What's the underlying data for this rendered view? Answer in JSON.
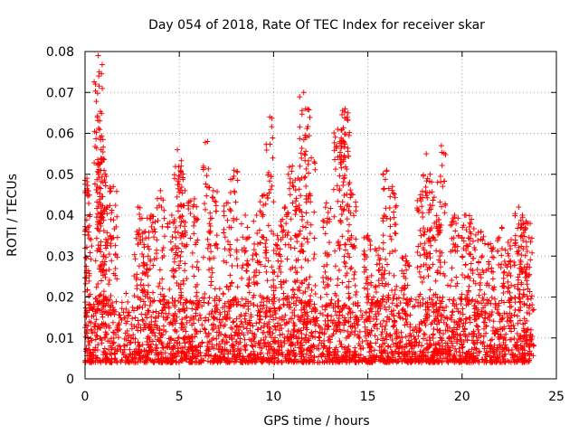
{
  "chart_data": {
    "type": "scatter",
    "title": "Day 054 of 2018, Rate Of TEC Index for receiver skar",
    "xlabel": "GPS time / hours",
    "ylabel": "ROTI / TECUs",
    "xlim": [
      0,
      25
    ],
    "ylim": [
      0,
      0.08
    ],
    "x_ticks": [
      0,
      5,
      10,
      15,
      20,
      25
    ],
    "x_tick_labels": [
      "0",
      "5",
      "10",
      "15",
      "20",
      "25"
    ],
    "y_ticks": [
      0,
      0.01,
      0.02,
      0.03,
      0.04,
      0.05,
      0.06,
      0.07,
      0.08
    ],
    "y_tick_labels": [
      "0",
      "0.01",
      "0.02",
      "0.03",
      "0.04",
      "0.05",
      "0.06",
      "0.07",
      "0.08"
    ],
    "grid": true,
    "marker": "+",
    "color": "#ff0000",
    "data_time_range": [
      0,
      23.8
    ],
    "baseline_band": [
      0.004,
      0.02
    ],
    "series": [
      {
        "name": "ROTI",
        "x": [
          0.1,
          0.15,
          0.7,
          0.75,
          0.8,
          0.85,
          0.9,
          1.2,
          1.5,
          2.8,
          3.2,
          3.5,
          4.0,
          4.6,
          4.9,
          5.1,
          5.3,
          5.8,
          6.5,
          6.8,
          7.5,
          7.9,
          8.5,
          9.1,
          9.5,
          9.8,
          10.2,
          10.6,
          11.0,
          11.3,
          11.6,
          11.7,
          12.0,
          12.8,
          13.4,
          13.6,
          13.8,
          13.9,
          14.2,
          15.0,
          15.6,
          16.0,
          16.3,
          17.0,
          17.8,
          18.1,
          18.3,
          18.7,
          18.9,
          19.6,
          20.2,
          20.5,
          21.0,
          21.5,
          22.1,
          22.6,
          23.0,
          23.2,
          23.5
        ],
        "y": [
          0.049,
          0.046,
          0.079,
          0.075,
          0.059,
          0.056,
          0.053,
          0.042,
          0.047,
          0.042,
          0.036,
          0.04,
          0.046,
          0.04,
          0.056,
          0.052,
          0.046,
          0.044,
          0.058,
          0.046,
          0.043,
          0.051,
          0.04,
          0.04,
          0.045,
          0.064,
          0.035,
          0.042,
          0.052,
          0.049,
          0.07,
          0.066,
          0.054,
          0.043,
          0.061,
          0.058,
          0.066,
          0.064,
          0.045,
          0.035,
          0.032,
          0.051,
          0.047,
          0.03,
          0.045,
          0.055,
          0.05,
          0.048,
          0.057,
          0.04,
          0.04,
          0.039,
          0.036,
          0.033,
          0.037,
          0.034,
          0.042,
          0.04,
          0.038
        ]
      }
    ]
  }
}
